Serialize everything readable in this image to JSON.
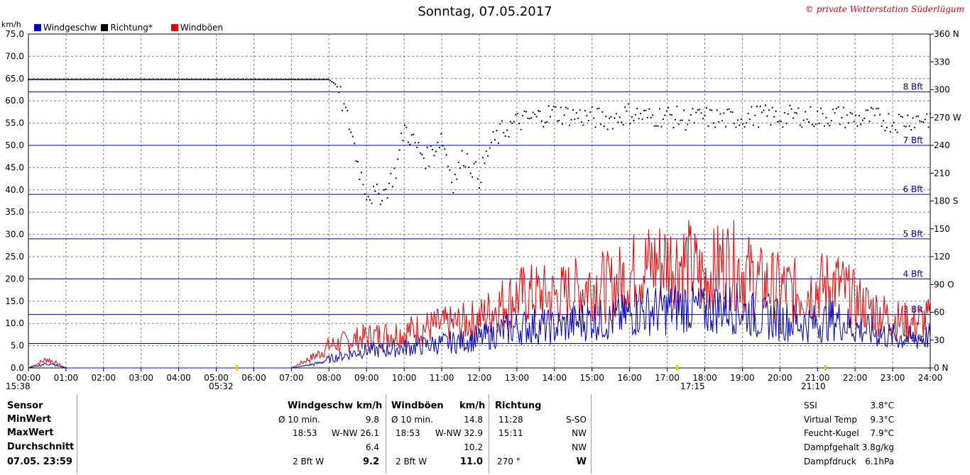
{
  "title": "Sonntag, 07.05.2017",
  "copyright": "© private Wetterstation Süderlügum",
  "legend": {
    "speed": "Windgeschw",
    "direction": "Richtung*",
    "gusts": "Windböen"
  },
  "colors": {
    "speed": "#0000cc",
    "direction": "#000000",
    "gusts": "#ee0000",
    "bft": "#0000aa",
    "grid": "#808080"
  },
  "chart_data": {
    "type": "line",
    "ylabel_left": "km/h",
    "ylim_left": [
      0,
      75
    ],
    "yticks_left": [
      "0.0",
      "5.0",
      "10.0",
      "15.0",
      "20.0",
      "25.0",
      "30.0",
      "35.0",
      "40.0",
      "45.0",
      "50.0",
      "55.0",
      "60.0",
      "65.0",
      "70.0",
      "75.0"
    ],
    "ylim_right": [
      0,
      360
    ],
    "yticks_right": [
      "0 N",
      "30",
      "60",
      "90 O",
      "120",
      "150",
      "180 S",
      "210",
      "240",
      "270 W",
      "300",
      "330",
      "360 N"
    ],
    "xticks": [
      "00:00",
      "01:00",
      "02:00",
      "03:00",
      "04:00",
      "05:00",
      "06:00",
      "07:00",
      "08:00",
      "09:00",
      "10:00",
      "11:00",
      "12:00",
      "13:00",
      "14:00",
      "15:00",
      "16:00",
      "17:00",
      "18:00",
      "19:00",
      "20:00",
      "21:00",
      "22:00",
      "23:00",
      "24:00"
    ],
    "bft_lines": [
      {
        "label": "2 Bft",
        "value": 5.5
      },
      {
        "label": "3 Bft",
        "value": 12
      },
      {
        "label": "4 Bft",
        "value": 20
      },
      {
        "label": "5 Bft",
        "value": 29
      },
      {
        "label": "6 Bft",
        "value": 39
      },
      {
        "label": "7 Bft",
        "value": 50
      },
      {
        "label": "8 Bft",
        "value": 62
      }
    ],
    "time_markers": [
      "15:38",
      "05:32",
      "17:15",
      "21:10"
    ],
    "series": [
      {
        "name": "Windgeschw",
        "unit": "km/h",
        "x": [
          0,
          0.5,
          1,
          2,
          3,
          4,
          5,
          6,
          7,
          7.7,
          8,
          8.5,
          9,
          9.5,
          10,
          10.5,
          11,
          11.5,
          12,
          12.5,
          13,
          13.5,
          14,
          14.5,
          15,
          15.5,
          16,
          16.5,
          17,
          17.5,
          18,
          18.5,
          19,
          19.5,
          20,
          20.5,
          21,
          21.5,
          22,
          22.5,
          23,
          23.5,
          24
        ],
        "values": [
          0,
          1,
          0,
          0,
          0,
          0,
          0,
          0,
          0,
          1,
          2,
          3,
          4,
          4,
          4.5,
          5,
          5.5,
          6,
          6.5,
          8,
          9,
          9.5,
          9,
          10,
          11,
          10.5,
          12,
          13,
          13,
          14,
          12.5,
          14,
          13,
          11,
          11,
          10,
          10,
          11,
          9,
          8,
          7,
          6.5,
          7
        ]
      },
      {
        "name": "Windböen",
        "unit": "km/h",
        "x": [
          0,
          0.5,
          1,
          2,
          3,
          4,
          5,
          6,
          7,
          7.7,
          8,
          8.5,
          9,
          9.5,
          10,
          10.5,
          11,
          11.5,
          12,
          12.5,
          13,
          13.5,
          14,
          14.5,
          15,
          15.5,
          16,
          16.5,
          17,
          17.5,
          18,
          18.5,
          19,
          19.5,
          20,
          20.5,
          21,
          21.5,
          22,
          22.5,
          23,
          23.5,
          24
        ],
        "values": [
          0,
          2,
          0,
          0,
          0,
          0,
          0,
          0,
          0,
          3,
          5,
          6,
          7,
          7.5,
          8,
          9,
          9.5,
          10,
          11,
          14,
          16,
          16.5,
          16,
          17,
          19,
          18,
          21,
          23,
          24,
          24,
          20,
          24,
          22,
          19,
          18,
          17,
          18,
          19,
          15,
          13,
          11,
          10,
          11
        ]
      },
      {
        "name": "Richtung*",
        "unit": "°",
        "x": [
          0,
          1,
          2,
          3,
          4,
          5,
          6,
          7,
          8,
          8.2,
          8.4,
          8.6,
          8.8,
          9,
          9.2,
          9.5,
          9.8,
          10,
          10.3,
          10.6,
          11,
          11.3,
          11.6,
          12,
          12.3,
          12.6,
          13,
          13.5,
          14,
          14.5,
          15,
          15.5,
          16,
          16.5,
          17,
          17.5,
          18,
          18.5,
          19,
          19.5,
          20,
          20.5,
          21,
          21.5,
          22,
          22.5,
          23,
          23.5,
          24
        ],
        "values": [
          311,
          311,
          311,
          311,
          311,
          311,
          311,
          311,
          311,
          305,
          280,
          255,
          215,
          190,
          185,
          190,
          215,
          260,
          240,
          225,
          250,
          200,
          230,
          205,
          240,
          255,
          265,
          270,
          275,
          272,
          270,
          268,
          275,
          270,
          272,
          268,
          270,
          268,
          270,
          272,
          270,
          272,
          270,
          272,
          268,
          270,
          265,
          268,
          270
        ]
      }
    ]
  },
  "panel": {
    "sensor": {
      "header": "Sensor",
      "rows": [
        "MinWert",
        "MaxWert",
        "Durchschnitt",
        "07.05. 23:59"
      ]
    },
    "speed": {
      "header": "Windgeschw",
      "unit": "km/h",
      "r1a": "Ø 10 min.",
      "r1b": "9.8",
      "r2a": "18:53",
      "r2b": "W-NW 26.1",
      "r3b": "6.4",
      "r4a": "2 Bft W",
      "r4b": "9.2"
    },
    "gusts": {
      "header": "Windböen",
      "unit": "km/h",
      "r1a": "Ø 10 min.",
      "r1b": "14.8",
      "r2a": "18:53",
      "r2b": "W-NW 32.9",
      "r3b": "10.2",
      "r4a": "2 Bft W",
      "r4b": "11.0"
    },
    "direction": {
      "header": "Richtung",
      "r1a": "11:28",
      "r1b": "S-SO",
      "r2a": "15:11",
      "r2b": "NW",
      "r3b": "NW",
      "r4a": "270 °",
      "r4b": "W"
    },
    "extra": {
      "labels": [
        "SSI",
        "Virtual Temp",
        "Feucht-Kugel",
        "Dampfgehalt",
        "Dampfdruck"
      ],
      "values": [
        "3.8°C",
        "9.3°C",
        "7.9°C",
        "3.8g/kg",
        "6.1hPa"
      ]
    }
  }
}
